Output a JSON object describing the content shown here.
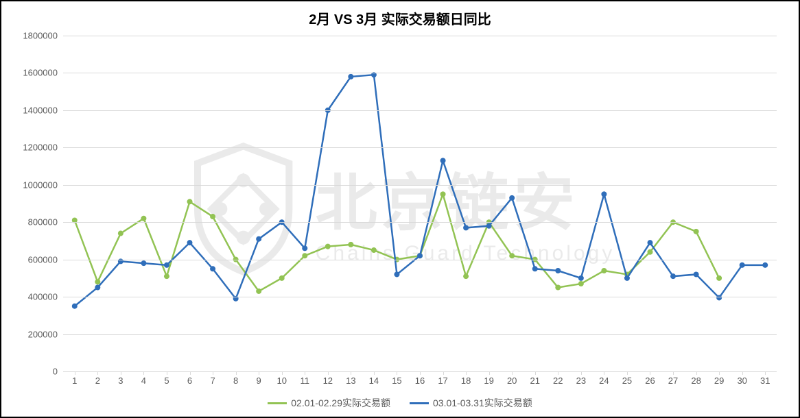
{
  "chart": {
    "type": "line",
    "title": "2月 VS 3月 实际交易额日同比",
    "title_fontsize": 20,
    "title_fontweight": "bold",
    "background_color": "#ffffff",
    "border_color": "#000000",
    "grid_color": "#d9d9d9",
    "axis_label_color": "#595959",
    "axis_label_fontsize": 13,
    "ylim": [
      0,
      1800000
    ],
    "ytick_step": 200000,
    "yticks": [
      0,
      200000,
      400000,
      600000,
      800000,
      1000000,
      1200000,
      1400000,
      1600000,
      1800000
    ],
    "xticks": [
      1,
      2,
      3,
      4,
      5,
      6,
      7,
      8,
      9,
      10,
      11,
      12,
      13,
      14,
      15,
      16,
      17,
      18,
      19,
      20,
      21,
      22,
      23,
      24,
      25,
      26,
      27,
      28,
      29,
      30,
      31
    ],
    "line_width": 2.5,
    "marker_style": "circle",
    "marker_size": 4,
    "series": [
      {
        "name": "02.01-02.29实际交易额",
        "color": "#92c353",
        "values": [
          810000,
          480000,
          740000,
          820000,
          510000,
          910000,
          830000,
          600000,
          430000,
          500000,
          620000,
          670000,
          680000,
          650000,
          600000,
          620000,
          950000,
          510000,
          800000,
          620000,
          600000,
          450000,
          470000,
          540000,
          520000,
          640000,
          800000,
          750000,
          500000,
          null,
          null
        ]
      },
      {
        "name": "03.01-03.31实际交易额",
        "color": "#2f6eba",
        "values": [
          350000,
          450000,
          590000,
          580000,
          570000,
          690000,
          550000,
          390000,
          710000,
          800000,
          660000,
          1400000,
          1580000,
          1590000,
          520000,
          620000,
          1130000,
          770000,
          780000,
          930000,
          550000,
          540000,
          500000,
          950000,
          500000,
          690000,
          510000,
          520000,
          395000,
          570000,
          570000
        ]
      }
    ],
    "legend": {
      "position": "bottom",
      "fontsize": 14,
      "color": "#595959"
    },
    "watermark": {
      "main": "北京链安",
      "sub": "Chains Guard Technology",
      "opacity": 0.08
    }
  }
}
